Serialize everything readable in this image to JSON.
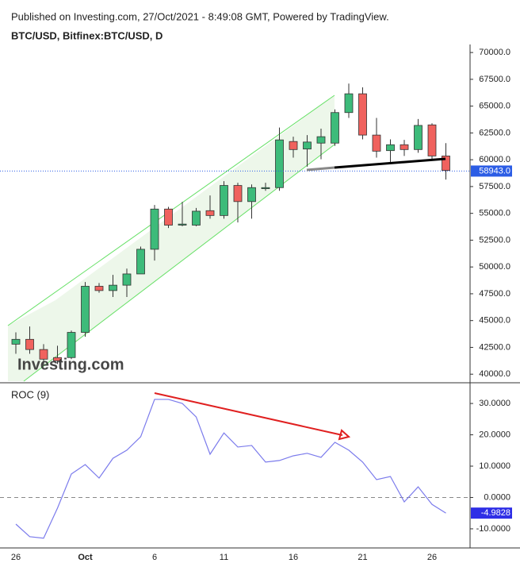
{
  "header": {
    "published": "Published on Investing.com, 27/Oct/2021 - 8:49:08 GMT, Powered by TradingView.",
    "symbol": "BTC/USD, Bitfinex:BTC/USD, D",
    "watermark": "Investing.com"
  },
  "chart_data": [
    {
      "type": "candlestick",
      "series": [
        {
          "name": "BTC/USD",
          "open": [
            42800,
            43250,
            42300,
            41550,
            41550,
            43900,
            48200,
            47800,
            48300,
            49350,
            51650,
            55400,
            53900,
            53900,
            55250,
            54800,
            57600,
            56100,
            57300,
            57400,
            61700,
            61000,
            61550,
            61550,
            64400,
            66150,
            62300,
            60850,
            61400,
            60950,
            63250,
            60350
          ],
          "high": [
            43900,
            44450,
            42800,
            42650,
            44070,
            48600,
            48500,
            49260,
            49850,
            51900,
            55780,
            55600,
            56080,
            55500,
            56670,
            58000,
            57850,
            57700,
            57850,
            63000,
            62150,
            62300,
            62900,
            64700,
            67100,
            66750,
            63900,
            61900,
            61850,
            63800,
            63400,
            61550
          ],
          "low": [
            41900,
            41900,
            40950,
            40950,
            41400,
            43500,
            47600,
            47200,
            47200,
            49350,
            50600,
            53630,
            53800,
            53800,
            54500,
            54500,
            54150,
            54500,
            57100,
            57100,
            60200,
            59350,
            60050,
            61300,
            63900,
            61900,
            60200,
            59700,
            60350,
            60650,
            60050,
            58150
          ],
          "close": [
            43250,
            42300,
            41400,
            41250,
            43900,
            48200,
            47800,
            48300,
            49350,
            51650,
            55400,
            53900,
            54000,
            55200,
            54800,
            57600,
            56100,
            57400,
            57400,
            61850,
            60950,
            61650,
            62150,
            64400,
            66150,
            62300,
            60800,
            61400,
            60950,
            63200,
            60350,
            59000
          ]
        }
      ],
      "up_color": "#3dbb7a",
      "down_color": "#f0625e",
      "wick_color": "#333333",
      "last_value": 58943,
      "last_value_label": "58943.0",
      "last_value_color": "#2c5de5",
      "ylim": [
        39200,
        70750
      ],
      "yticks": [
        {
          "value": 40000,
          "label": "40000.0"
        },
        {
          "value": 42500,
          "label": "42500.0"
        },
        {
          "value": 45000,
          "label": "45000.0"
        },
        {
          "value": 47500,
          "label": "47500.0"
        },
        {
          "value": 50000,
          "label": "50000.0"
        },
        {
          "value": 52500,
          "label": "52500.0"
        },
        {
          "value": 55000,
          "label": "55000.0"
        },
        {
          "value": 57500,
          "label": "57500.0"
        },
        {
          "value": 60000,
          "label": "60000.0"
        },
        {
          "value": 62500,
          "label": "62500.0"
        },
        {
          "value": 65000,
          "label": "65000.0"
        },
        {
          "value": 67500,
          "label": "67500.0"
        },
        {
          "value": 70000,
          "label": "70000.0"
        }
      ]
    },
    {
      "type": "line",
      "title": "ROC (9)",
      "categories": [
        "26",
        null,
        null,
        null,
        null,
        "Oct",
        null,
        null,
        null,
        null,
        "6",
        null,
        null,
        null,
        null,
        "11",
        null,
        null,
        null,
        null,
        "16",
        null,
        null,
        null,
        null,
        "21",
        null,
        null,
        null,
        null,
        "26",
        null
      ],
      "series": [
        {
          "name": "ROC",
          "color": "#7b7bec",
          "label_color": "#2f2fe6",
          "values": [
            -8.5,
            -12.5,
            -13.0,
            -3.4,
            7.5,
            10.5,
            6.2,
            12.5,
            15.1,
            19.4,
            31.3,
            31.3,
            30.0,
            25.7,
            13.8,
            20.6,
            16.1,
            16.6,
            11.3,
            11.8,
            13.3,
            14.1,
            12.8,
            17.6,
            15.1,
            11.3,
            5.7,
            6.7,
            -1.4,
            3.4,
            -2.2,
            -4.9828
          ]
        }
      ],
      "ylim": [
        -16.1,
        36.1
      ],
      "yticks": [
        {
          "value": -10,
          "label": "-10.0000"
        },
        {
          "value": 0,
          "label": "0.0000"
        },
        {
          "value": 10,
          "label": "10.0000"
        },
        {
          "value": 20,
          "label": "20.0000"
        },
        {
          "value": 30,
          "label": "30.0000"
        }
      ]
    }
  ]
}
